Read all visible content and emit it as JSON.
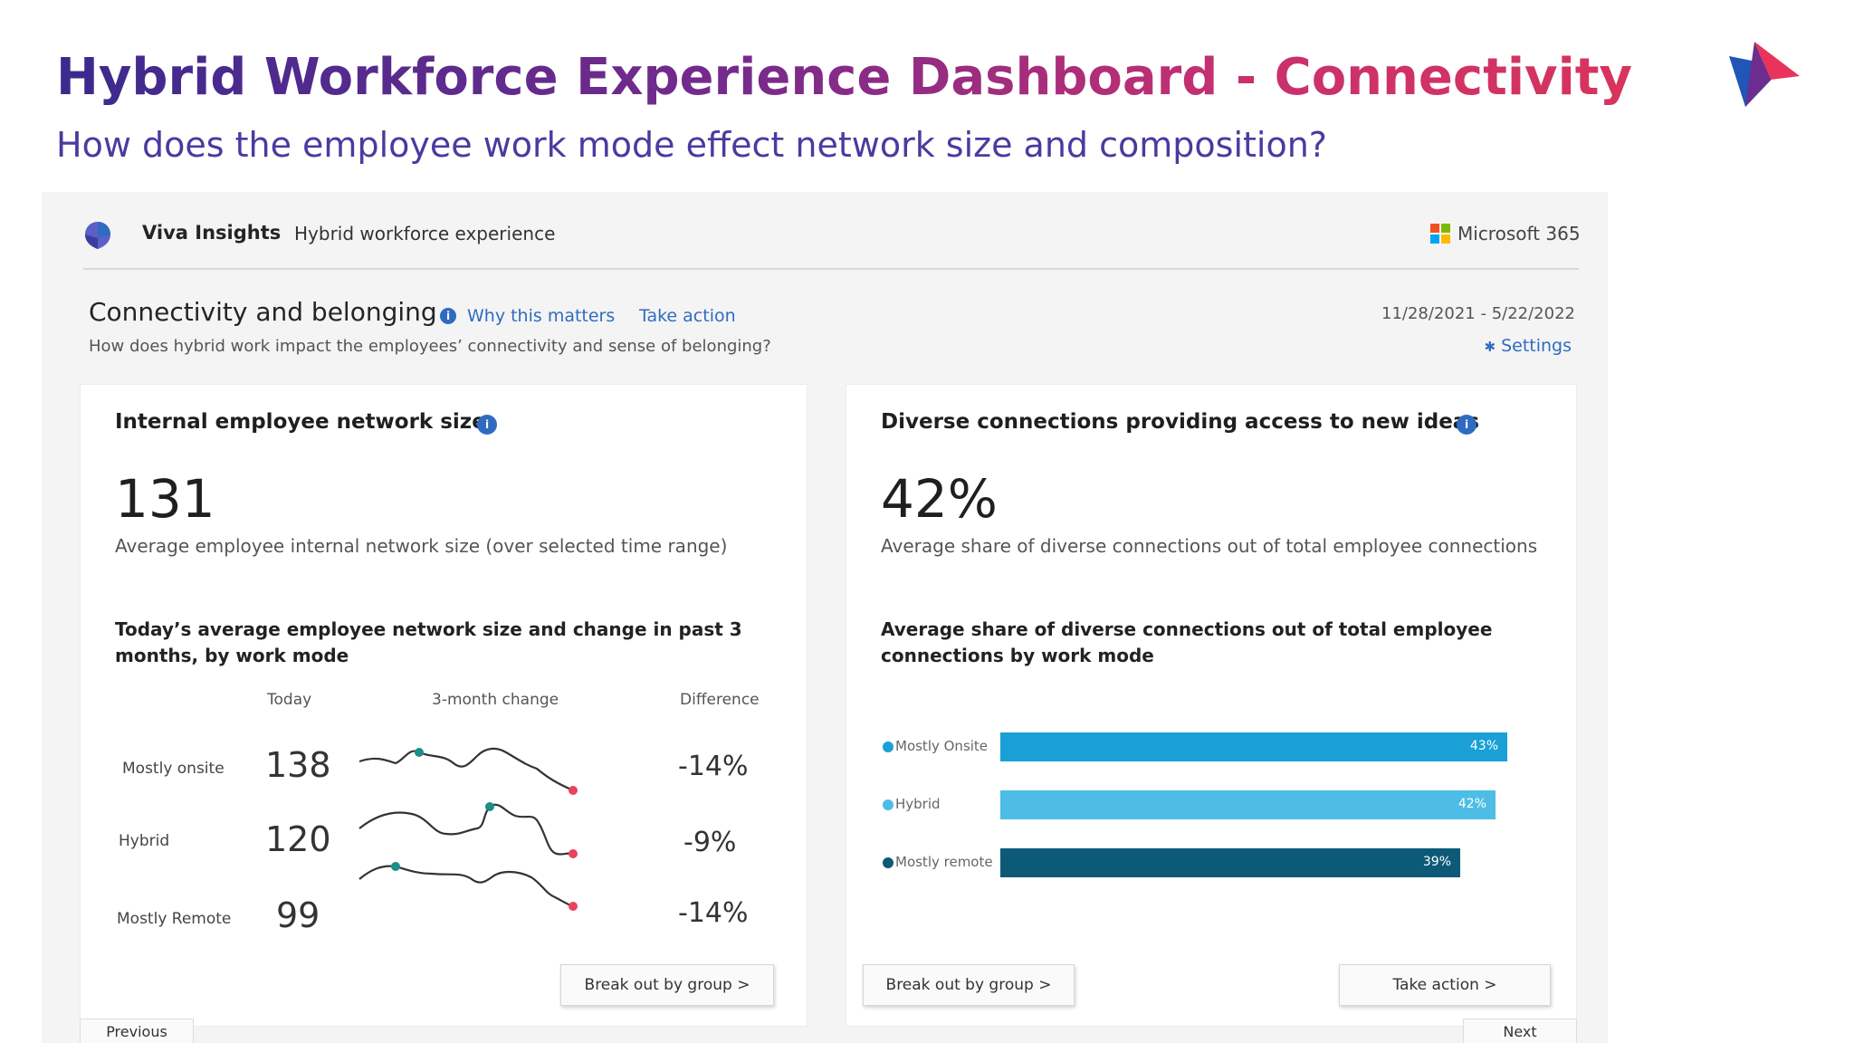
{
  "slide": {
    "title": "Hybrid Workforce Experience Dashboard - Connectivity",
    "subtitle": "How does the employee work mode effect network size and composition?"
  },
  "app": {
    "name": "Viva Insights",
    "breadcrumb": "Hybrid workforce experience",
    "suite": "Microsoft 365"
  },
  "section": {
    "title": "Connectivity and belonging",
    "why_link": "Why this matters",
    "action_link": "Take action",
    "description": "How does hybrid work impact the employees’ connectivity and sense of belonging?",
    "date_range": "11/28/2021 - 5/22/2022",
    "settings_label": "Settings"
  },
  "left_card": {
    "title": "Internal employee network size",
    "big_number": "131",
    "metric_desc": "Average employee internal network size (over selected time range)",
    "chart_title": "Today’s average employee network size and change in past 3 months, by work mode",
    "columns": {
      "today": "Today",
      "change": "3-month change",
      "difference": "Difference"
    },
    "rows": [
      {
        "label": "Mostly onsite",
        "today": "138",
        "difference": "-14%"
      },
      {
        "label": "Hybrid",
        "today": "120",
        "difference": "-9%"
      },
      {
        "label": "Mostly Remote",
        "today": "99",
        "difference": "-14%"
      }
    ],
    "button": "Break out by group >"
  },
  "right_card": {
    "title": "Diverse connections providing access to new ideas",
    "big_number": "42%",
    "metric_desc": "Average share of diverse connections out of total employee connections",
    "chart_title": "Average share of diverse connections out of total employee connections by work mode",
    "button_left": "Break out by group >",
    "button_right": "Take action >"
  },
  "chart_data": {
    "type": "bar",
    "categories": [
      "Mostly Onsite",
      "Hybrid",
      "Mostly remote"
    ],
    "values": [
      43,
      42,
      39
    ],
    "value_labels": [
      "43%",
      "42%",
      "39%"
    ],
    "colors": [
      "#1a9fd6",
      "#4dbde6",
      "#0d5a78"
    ]
  },
  "pager": {
    "previous": "Previous",
    "next": "Next"
  },
  "colors": {
    "accent": "#2f6cc0",
    "spark_marker": "#1a8f8a",
    "spark_end": "#e8445a"
  }
}
